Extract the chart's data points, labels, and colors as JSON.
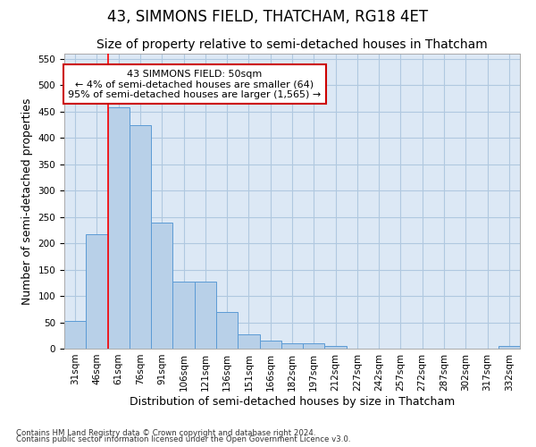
{
  "title": "43, SIMMONS FIELD, THATCHAM, RG18 4ET",
  "subtitle": "Size of property relative to semi-detached houses in Thatcham",
  "xlabel": "Distribution of semi-detached houses by size in Thatcham",
  "ylabel": "Number of semi-detached properties",
  "categories": [
    "31sqm",
    "46sqm",
    "61sqm",
    "76sqm",
    "91sqm",
    "106sqm",
    "121sqm",
    "136sqm",
    "151sqm",
    "166sqm",
    "182sqm",
    "197sqm",
    "212sqm",
    "227sqm",
    "242sqm",
    "257sqm",
    "272sqm",
    "287sqm",
    "302sqm",
    "317sqm",
    "332sqm"
  ],
  "values": [
    52,
    218,
    458,
    425,
    240,
    128,
    128,
    70,
    28,
    15,
    10,
    10,
    5,
    0,
    0,
    0,
    0,
    0,
    0,
    0,
    5
  ],
  "bar_color": "#b8d0e8",
  "bar_edge_color": "#5b9bd5",
  "red_line_x": 1.5,
  "annotation_text": "43 SIMMONS FIELD: 50sqm\n← 4% of semi-detached houses are smaller (64)\n95% of semi-detached houses are larger (1,565) →",
  "annotation_box_color": "#ffffff",
  "annotation_box_edge_color": "#cc0000",
  "ylim": [
    0,
    560
  ],
  "yticks": [
    0,
    50,
    100,
    150,
    200,
    250,
    300,
    350,
    400,
    450,
    500,
    550
  ],
  "footnote1": "Contains HM Land Registry data © Crown copyright and database right 2024.",
  "footnote2": "Contains public sector information licensed under the Open Government Licence v3.0.",
  "background_color": "#ffffff",
  "plot_bg_color": "#dce8f5",
  "grid_color": "#b0c8e0",
  "title_fontsize": 12,
  "subtitle_fontsize": 10,
  "axis_label_fontsize": 9,
  "tick_fontsize": 7.5,
  "annotation_fontsize": 8
}
